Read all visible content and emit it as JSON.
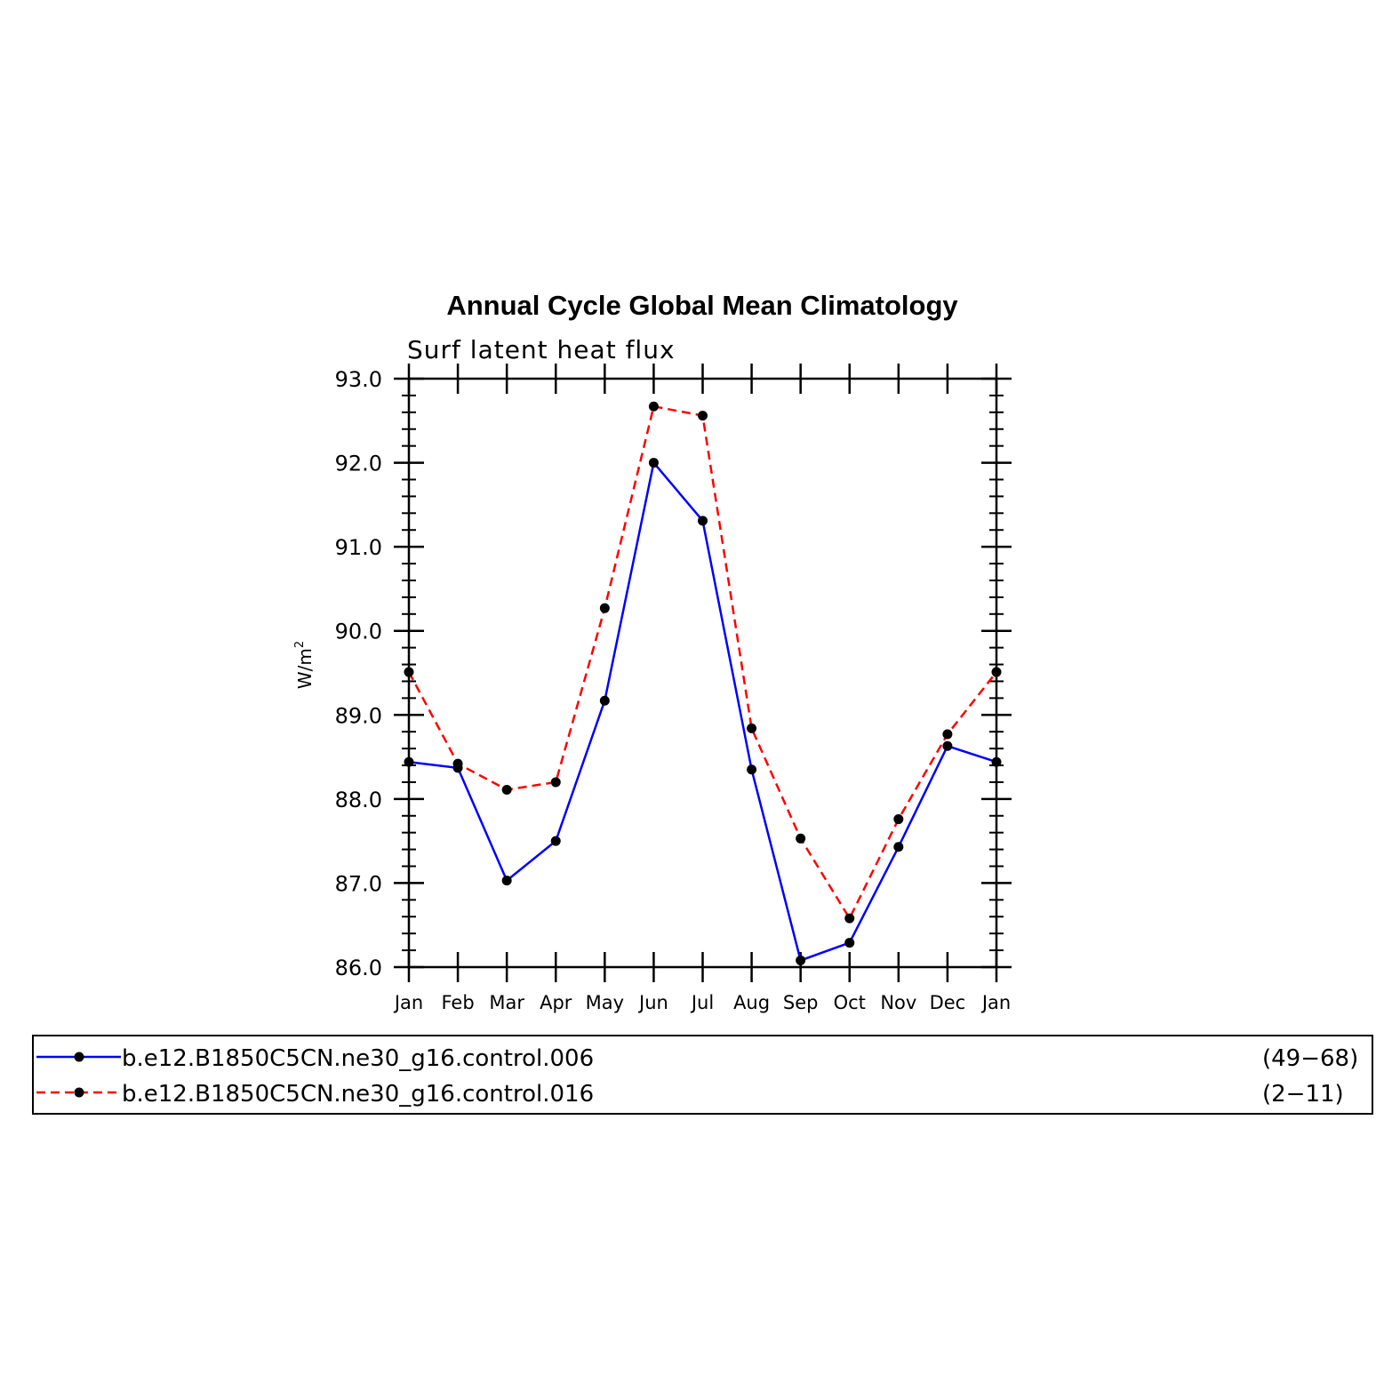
{
  "chart_data": {
    "type": "line",
    "title": "Annual Cycle Global Mean Climatology",
    "subtitle": "Surf latent heat flux",
    "ylabel": "W/m",
    "ylabel_sup": "2",
    "ylim": [
      86.0,
      93.0
    ],
    "yticks": [
      "86.0",
      "87.0",
      "88.0",
      "89.0",
      "90.0",
      "91.0",
      "92.0",
      "93.0"
    ],
    "categories": [
      "Jan",
      "Feb",
      "Mar",
      "Apr",
      "May",
      "Jun",
      "Jul",
      "Aug",
      "Sep",
      "Oct",
      "Nov",
      "Dec",
      "Jan"
    ],
    "series": [
      {
        "name": "b.e12.B1850C5CN.ne30_g16.control.006",
        "years": "(49−68)",
        "color": "#0000ff",
        "dash": "solid",
        "values": [
          88.44,
          88.37,
          87.03,
          87.5,
          89.17,
          92.0,
          91.31,
          88.35,
          86.08,
          86.29,
          87.43,
          88.63,
          88.44
        ]
      },
      {
        "name": "b.e12.B1850C5CN.ne30_g16.control.016",
        "years": "(2−11)",
        "color": "#ff0000",
        "dash": "dashed",
        "values": [
          89.51,
          88.42,
          88.11,
          88.2,
          90.27,
          92.67,
          92.56,
          88.84,
          87.53,
          86.58,
          87.76,
          88.77,
          89.51
        ]
      }
    ],
    "grid": false,
    "legend_position": "bottom"
  }
}
